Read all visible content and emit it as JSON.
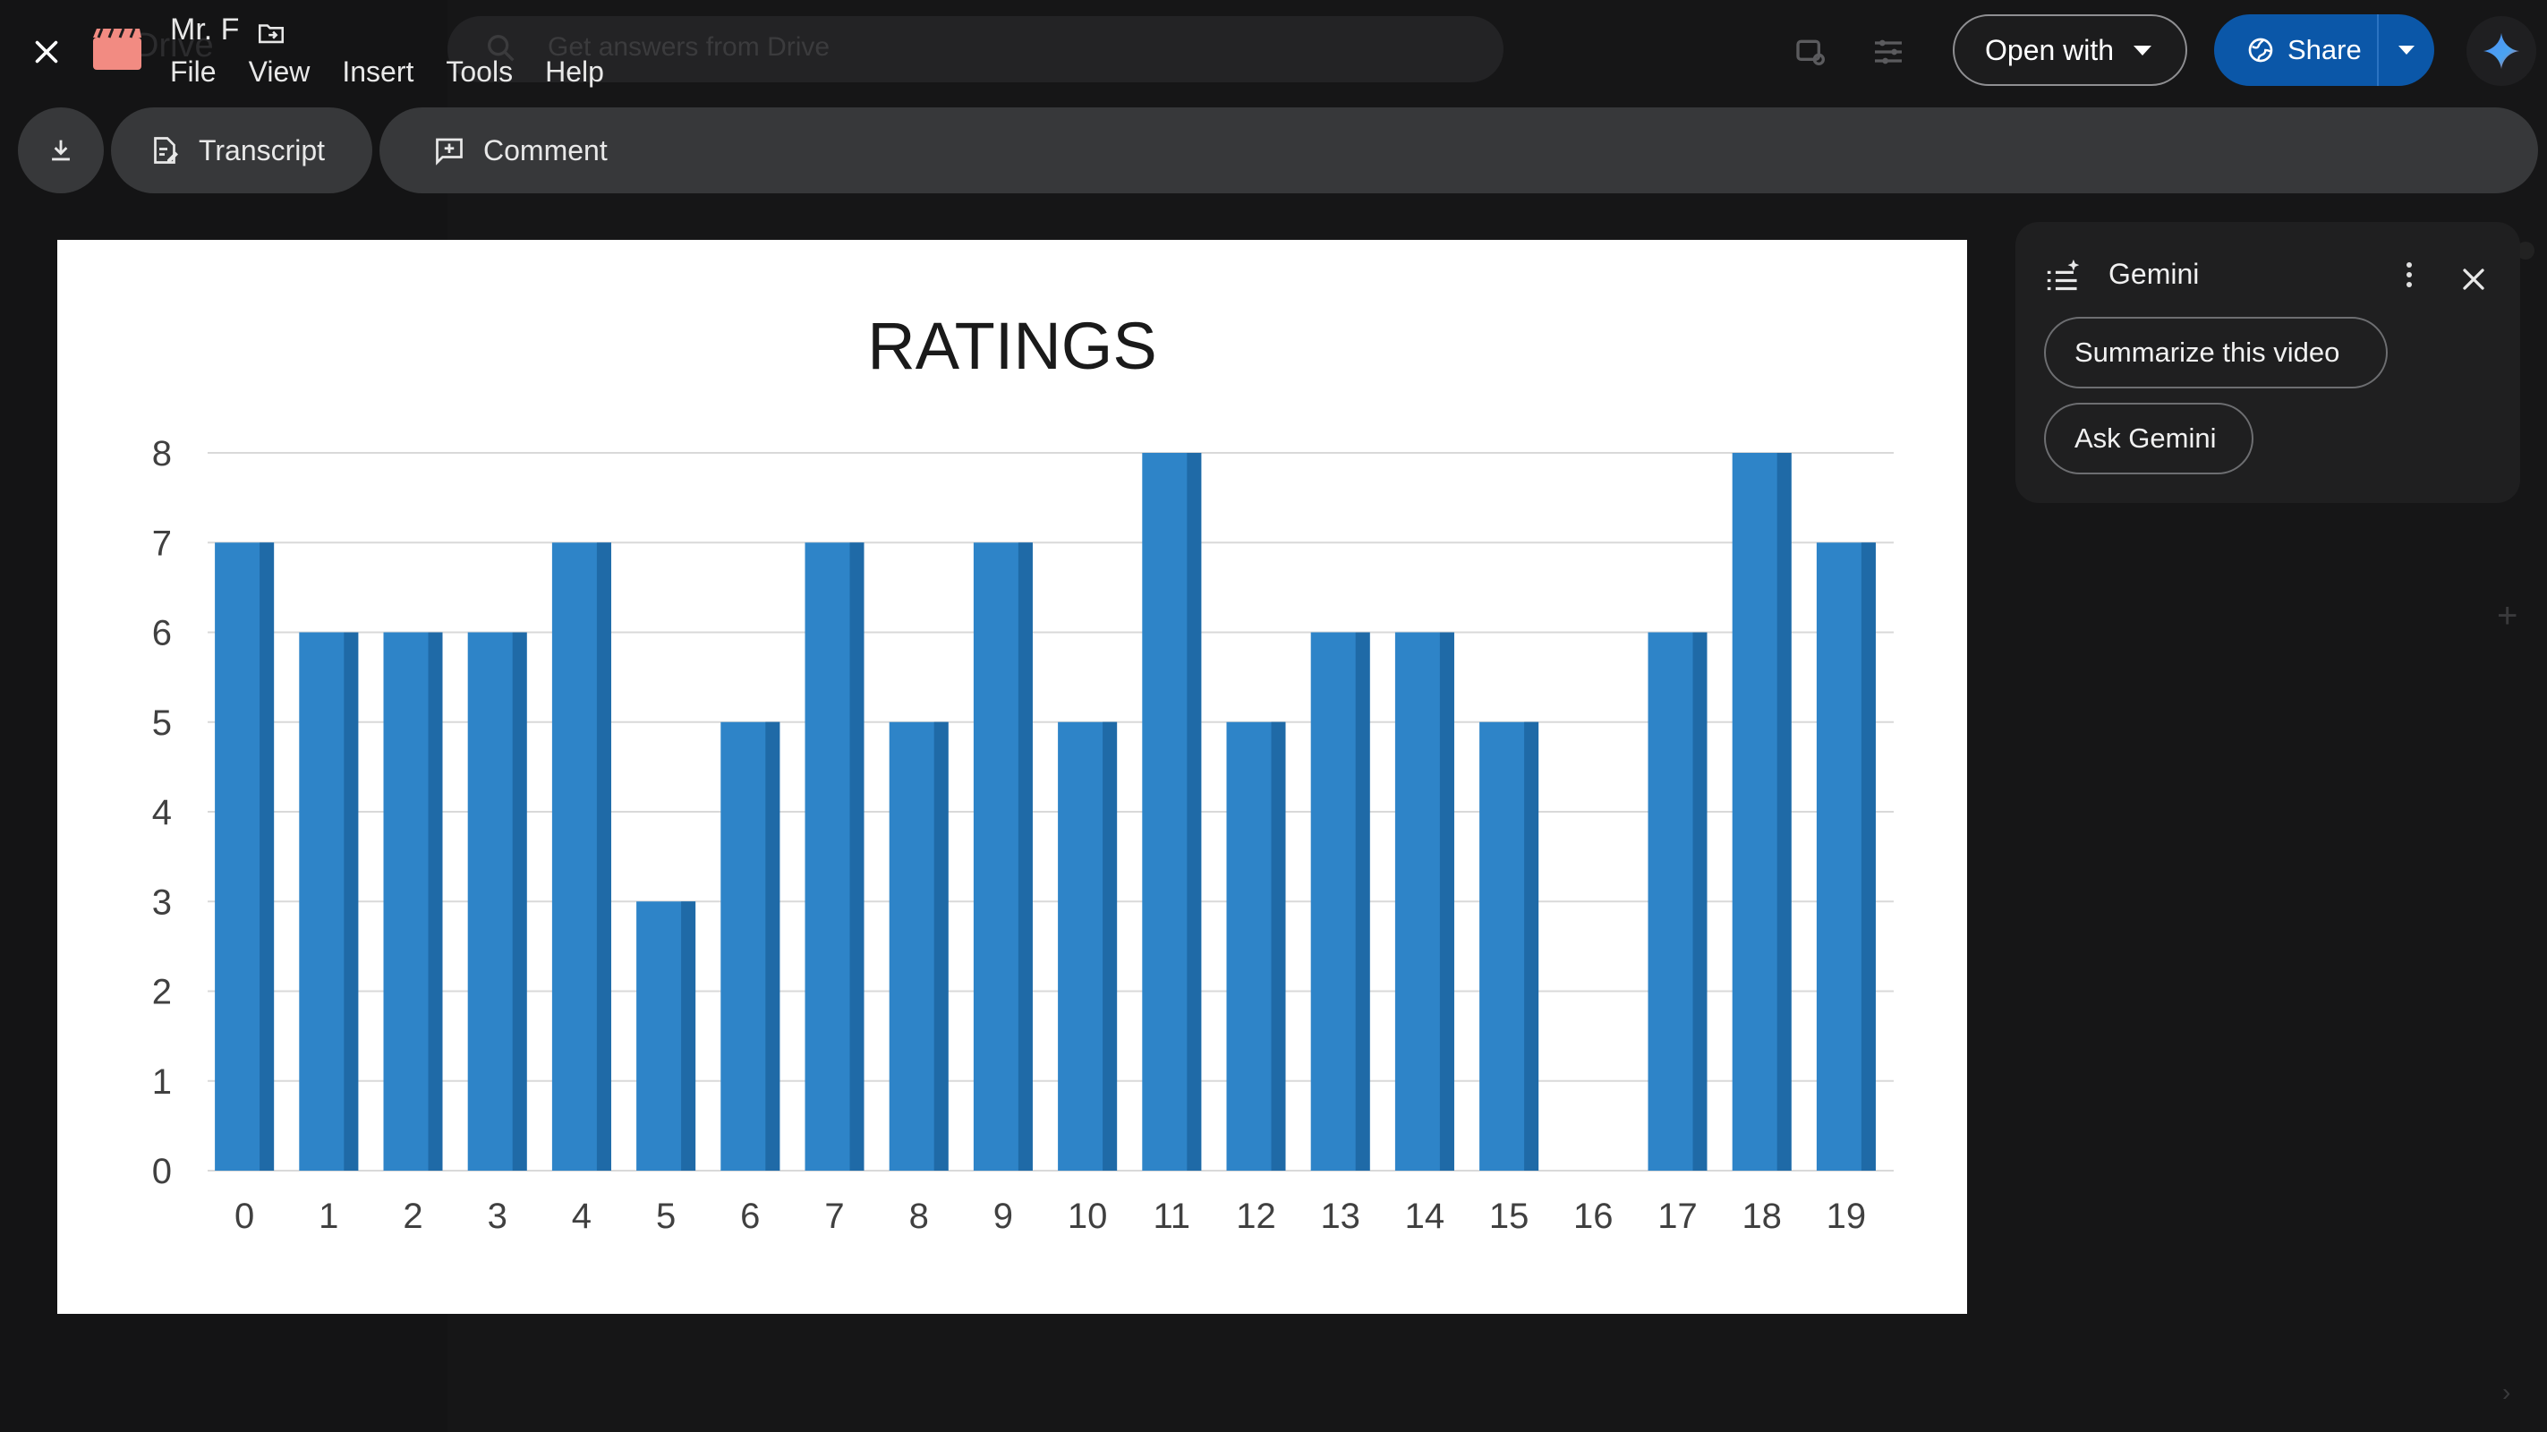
{
  "topbar": {
    "title": "Mr. F",
    "menu": [
      "File",
      "View",
      "Insert",
      "Tools",
      "Help"
    ],
    "open_with_label": "Open with",
    "share_label": "Share"
  },
  "background": {
    "search_placeholder": "Get answers from Drive",
    "drive_label": "Drive"
  },
  "toolbar": {
    "transcript_label": "Transcript",
    "comment_label": "Comment"
  },
  "gemini": {
    "title": "Gemini",
    "suggestions": [
      "Summarize this video",
      "Ask Gemini"
    ]
  },
  "colors": {
    "bar": "#2e84c8",
    "bar_shade": "#1f6aa7",
    "share_button": "#0b57a8"
  },
  "chart_data": {
    "type": "bar",
    "title": "RATINGS",
    "categories": [
      "0",
      "1",
      "2",
      "3",
      "4",
      "5",
      "6",
      "7",
      "8",
      "9",
      "10",
      "11",
      "12",
      "13",
      "14",
      "15",
      "16",
      "17",
      "18",
      "19"
    ],
    "values": [
      7,
      6,
      6,
      6,
      7,
      3,
      5,
      7,
      5,
      7,
      5,
      8,
      5,
      6,
      6,
      5,
      0,
      6,
      8,
      7
    ],
    "ylim": [
      0,
      8
    ],
    "yticks": [
      0,
      1,
      2,
      3,
      4,
      5,
      6,
      7,
      8
    ],
    "grid": true,
    "legend": "none"
  }
}
